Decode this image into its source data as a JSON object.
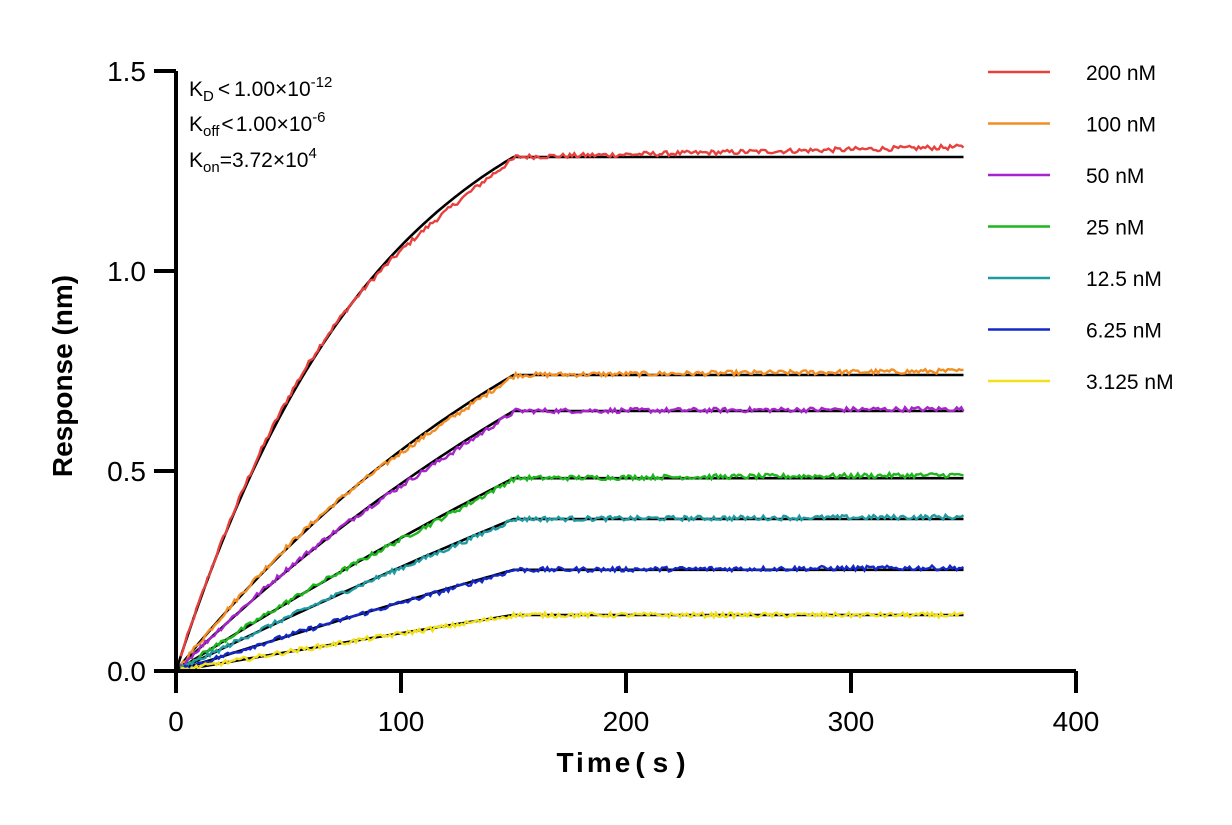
{
  "chart_data": {
    "type": "line",
    "title": "",
    "xlabel": "Time",
    "xlabel_unit_open": "(",
    "xlabel_unit": "s",
    "xlabel_unit_close": ")",
    "ylabel": "Response (nm)",
    "xlim": [
      0,
      400
    ],
    "ylim": [
      0,
      1.5
    ],
    "xticks": [
      0,
      100,
      200,
      300,
      400
    ],
    "xtick_labels": [
      "0",
      "100",
      "200",
      "300",
      "400"
    ],
    "yticks": [
      0,
      0.5,
      1.0,
      1.5
    ],
    "ytick_labels": [
      "0.0",
      "0.5",
      "1.0",
      "1.5"
    ],
    "grid": false,
    "legend_position": "top-right",
    "association_end_s": 150,
    "end_time_s": 350,
    "annotations": {
      "kd": {
        "k": "K",
        "sub": "D",
        "rel": "<",
        "base": "1.00×10",
        "exp": "-12"
      },
      "koff": {
        "k": "K",
        "sub": "off",
        "rel": "<",
        "base": "1.00×10",
        "exp": "-6"
      },
      "kon": {
        "k": "K",
        "sub": "on",
        "rel": "=",
        "base": "3.72×10",
        "exp": "4"
      }
    },
    "series": [
      {
        "name": "200 nM",
        "color": "#e8413d",
        "plateau": 1.285,
        "measured_end": 1.31,
        "tau": 90
      },
      {
        "name": "100 nM",
        "color": "#f28e23",
        "plateau": 0.74,
        "measured_end": 0.75,
        "tau": 200
      },
      {
        "name": "50 nM",
        "color": "#a624c9",
        "plateau": 0.65,
        "measured_end": 0.655,
        "tau": 300
      },
      {
        "name": "25 nM",
        "color": "#1fb51f",
        "plateau": 0.482,
        "measured_end": 0.49,
        "tau": 700
      },
      {
        "name": "12.5 nM",
        "color": "#1f9aa0",
        "plateau": 0.38,
        "measured_end": 0.385,
        "tau": 900
      },
      {
        "name": "6.25 nM",
        "color": "#1428c8",
        "plateau": 0.253,
        "measured_end": 0.258,
        "tau": 1200
      },
      {
        "name": "3.125 nM",
        "color": "#f2e11a",
        "plateau": 0.14,
        "measured_end": 0.14,
        "tau": 2000
      }
    ],
    "fit_color": "#000000"
  }
}
